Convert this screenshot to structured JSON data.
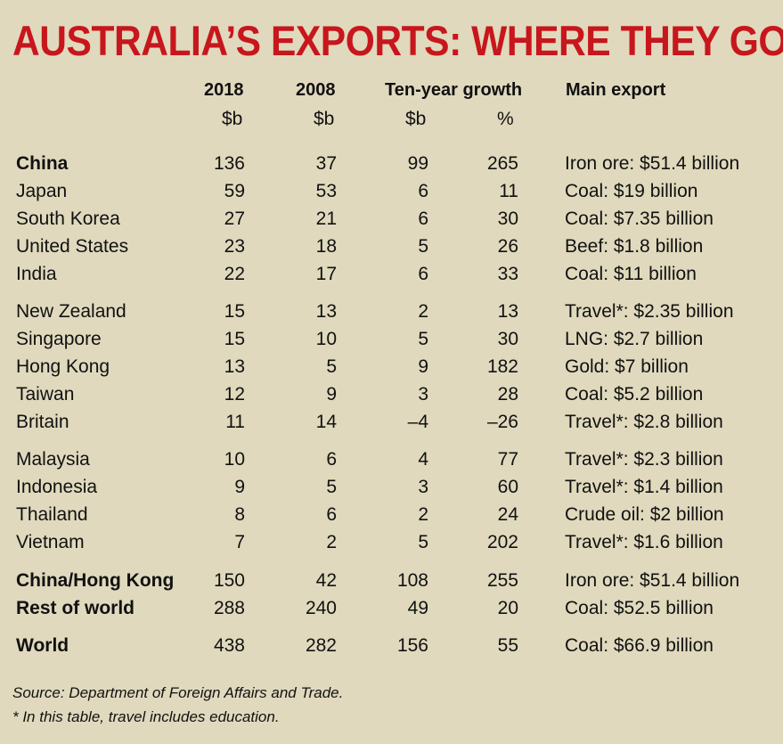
{
  "title": "AUSTRALIA’S EXPORTS: WHERE THEY GO",
  "headers": {
    "y2018": "2018",
    "y2008": "2008",
    "growth": "Ten-year growth",
    "main": "Main export",
    "u2018": "$b",
    "u2008": "$b",
    "ugb": "$b",
    "ugp": "%"
  },
  "rows": [
    {
      "name": "China",
      "v2018": "136",
      "v2008": "37",
      "gb": "99",
      "gp": "265",
      "main": "Iron ore: $51.4 billion"
    },
    {
      "name": "Japan",
      "v2018": "59",
      "v2008": "53",
      "gb": "6",
      "gp": "11",
      "main": "Coal: $19 billion"
    },
    {
      "name": "South Korea",
      "v2018": "27",
      "v2008": "21",
      "gb": "6",
      "gp": "30",
      "main": "Coal: $7.35 billion"
    },
    {
      "name": "United States",
      "v2018": "23",
      "v2008": "18",
      "gb": "5",
      "gp": "26",
      "main": "Beef: $1.8 billion"
    },
    {
      "name": "India",
      "v2018": "22",
      "v2008": "17",
      "gb": "6",
      "gp": "33",
      "main": "Coal: $11 billion"
    },
    {
      "name": "New Zealand",
      "v2018": "15",
      "v2008": "13",
      "gb": "2",
      "gp": "13",
      "main": "Travel*: $2.35 billion"
    },
    {
      "name": "Singapore",
      "v2018": "15",
      "v2008": "10",
      "gb": "5",
      "gp": "30",
      "main": "LNG: $2.7 billion"
    },
    {
      "name": "Hong Kong",
      "v2018": "13",
      "v2008": "5",
      "gb": "9",
      "gp": "182",
      "main": "Gold: $7 billion"
    },
    {
      "name": "Taiwan",
      "v2018": "12",
      "v2008": "9",
      "gb": "3",
      "gp": "28",
      "main": "Coal: $5.2 billion"
    },
    {
      "name": "Britain",
      "v2018": "11",
      "v2008": "14",
      "gb": "–4",
      "gp": "–26",
      "main": "Travel*: $2.8 billion"
    },
    {
      "name": "Malaysia",
      "v2018": "10",
      "v2008": "6",
      "gb": "4",
      "gp": "77",
      "main": "Travel*: $2.3 billion"
    },
    {
      "name": "Indonesia",
      "v2018": "9",
      "v2008": "5",
      "gb": "3",
      "gp": "60",
      "main": "Travel*: $1.4 billion"
    },
    {
      "name": "Thailand",
      "v2018": "8",
      "v2008": "6",
      "gb": "2",
      "gp": "24",
      "main": "Crude oil: $2 billion"
    },
    {
      "name": "Vietnam",
      "v2018": "7",
      "v2008": "2",
      "gb": "5",
      "gp": "202",
      "main": "Travel*: $1.6 billion"
    },
    {
      "name": "China/Hong Kong",
      "v2018": "150",
      "v2008": "42",
      "gb": "108",
      "gp": "255",
      "main": "Iron ore: $51.4 billion"
    },
    {
      "name": "Rest of world",
      "v2018": "288",
      "v2008": "240",
      "gb": "49",
      "gp": "20",
      "main": "Coal: $52.5 billion"
    },
    {
      "name": "World",
      "v2018": "438",
      "v2008": "282",
      "gb": "156",
      "gp": "55",
      "main": "Coal: $66.9 billion"
    }
  ],
  "source": "Source: Department of Foreign Affairs and Trade.",
  "footnote": "* In this table, travel includes education."
}
